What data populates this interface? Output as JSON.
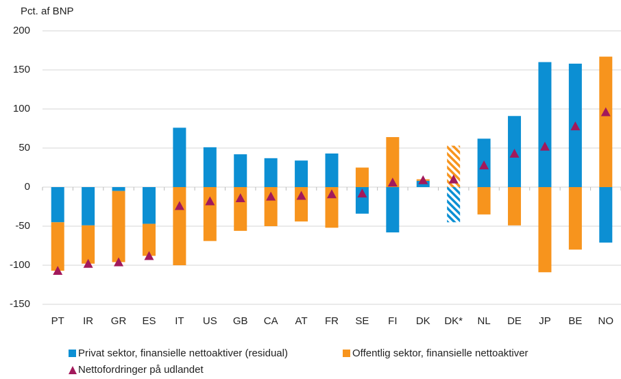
{
  "chart_data": {
    "type": "stacked_bar_marker",
    "y_label": "Pct. af BNP",
    "categories": [
      "PT",
      "IR",
      "GR",
      "ES",
      "IT",
      "US",
      "GB",
      "CA",
      "AT",
      "FR",
      "SE",
      "FI",
      "DK",
      "DK*",
      "NL",
      "DE",
      "JP",
      "BE",
      "NO"
    ],
    "hatched": [
      false,
      false,
      false,
      false,
      false,
      false,
      false,
      false,
      false,
      false,
      false,
      false,
      false,
      true,
      false,
      false,
      false,
      false,
      false
    ],
    "series": [
      {
        "name": "Privat sektor, finansielle nettoaktiver (residual)",
        "color": "#0c8fd3",
        "kind": "bar",
        "values": [
          -45,
          -49,
          -5,
          -47,
          76,
          51,
          42,
          37,
          34,
          43,
          -34,
          -58,
          8,
          -45,
          62,
          91,
          160,
          158,
          -71
        ]
      },
      {
        "name": "Offentlig sektor, finansielle nettoaktiver",
        "color": "#f7941d",
        "kind": "bar",
        "values": [
          -62,
          -49,
          -91,
          -41,
          -100,
          -69,
          -56,
          -50,
          -44,
          -52,
          25,
          64,
          2,
          53,
          -35,
          -49,
          -109,
          -80,
          167
        ]
      },
      {
        "name": "Nettofordringer på udlandet",
        "color": "#a2195b",
        "kind": "marker",
        "values": [
          -107,
          -98,
          -96,
          -88,
          -24,
          -18,
          -14,
          -12,
          -11,
          -9,
          -8,
          6,
          9,
          10,
          28,
          43,
          52,
          78,
          96
        ]
      }
    ],
    "ylim": [
      -150,
      200
    ],
    "yticks": [
      -150,
      -100,
      -50,
      0,
      50,
      100,
      150,
      200
    ],
    "grid": true
  }
}
